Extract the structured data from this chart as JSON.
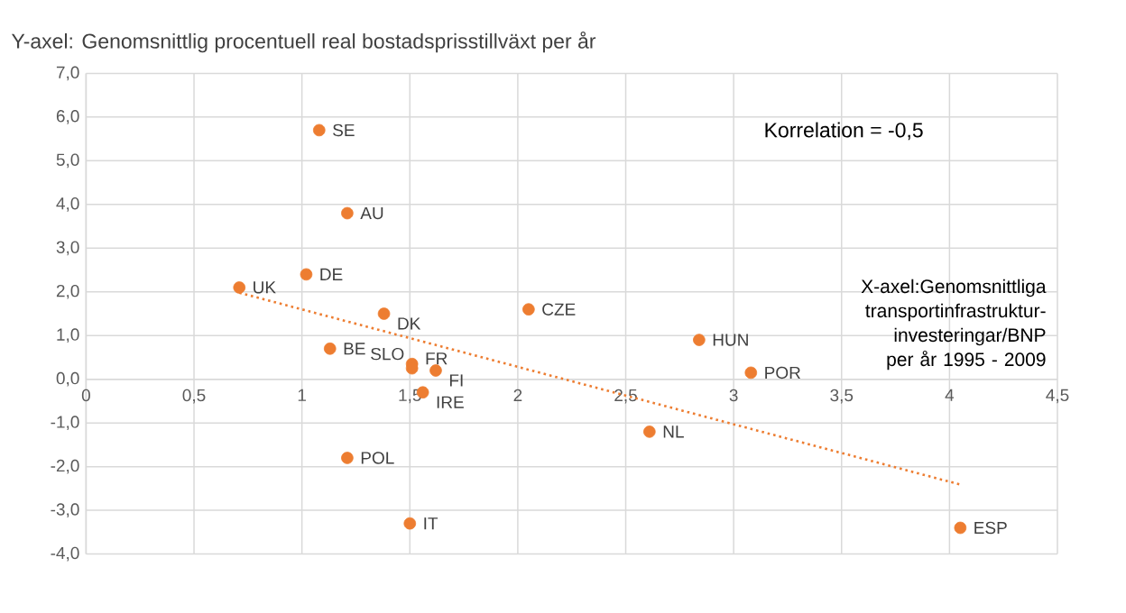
{
  "chart_data": {
    "type": "scatter",
    "ylabel": "Y-axel: Genomsnittlig procentuell real bostadsprisstillväxt per år",
    "xlabel": "X-axel:Genomsnittliga transportinfrastruktur-investeringar/BNP per år 1995 - 2009",
    "annotations": [
      "Korrelation = -0,5"
    ],
    "series": [
      {
        "color": "#ed7d31",
        "marker": "circle",
        "x": [
          1.08,
          1.21,
          1.02,
          0.71,
          1.38,
          2.05,
          1.13,
          1.51,
          1.51,
          1.62,
          1.56,
          1.21,
          1.5,
          2.84,
          3.08,
          2.61,
          4.05
        ],
        "values": [
          5.7,
          3.8,
          2.4,
          2.1,
          1.5,
          1.6,
          0.7,
          0.35,
          0.25,
          0.2,
          -0.3,
          -1.8,
          -3.3,
          0.9,
          0.15,
          -1.2,
          -3.4
        ],
        "value_labels": [
          "SE",
          "AU",
          "DE",
          "UK",
          "DK",
          "CZE",
          "BE",
          "SLO",
          "FR",
          "FI",
          "IRE",
          "POL",
          "IT",
          "HUN",
          "POR",
          "NL",
          "ESP"
        ]
      },
      {
        "type": "line",
        "color": "#ed7d31",
        "marker": "none",
        "line_style": "dotted",
        "x": [
          0.71,
          4.05
        ],
        "values": [
          1.98,
          -2.41
        ]
      }
    ],
    "xlim": [
      0,
      4.5
    ],
    "ylim": [
      -4,
      7
    ],
    "xticks": [
      0,
      {
        "value": 0.5,
        "label": "0,5"
      },
      1,
      {
        "value": 1.5,
        "label": "1,5"
      },
      2,
      {
        "value": 2.5,
        "label": "2,5"
      },
      3,
      {
        "value": 3.5,
        "label": "3,5"
      },
      4,
      {
        "value": 4.5,
        "label": "4,5"
      }
    ],
    "yticks": [
      {
        "value": -4,
        "label": "-4,0"
      },
      {
        "value": -3,
        "label": "-3,0"
      },
      {
        "value": -2,
        "label": "-2,0"
      },
      {
        "value": -1,
        "label": "-1,0"
      },
      {
        "value": 0,
        "label": "0,0"
      },
      {
        "value": 1,
        "label": "1,0"
      },
      {
        "value": 2,
        "label": "2,0"
      },
      {
        "value": 3,
        "label": "3,0"
      },
      {
        "value": 4,
        "label": "4,0"
      },
      {
        "value": 5,
        "label": "5,0"
      },
      {
        "value": 6,
        "label": "6,0"
      },
      {
        "value": 7,
        "label": "7,0"
      }
    ],
    "grid": true
  }
}
